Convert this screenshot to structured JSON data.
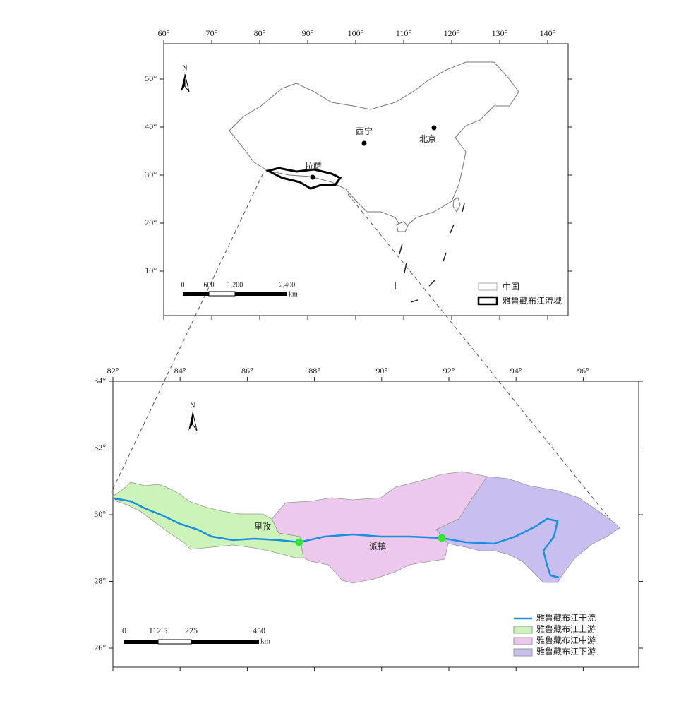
{
  "top_map": {
    "lon_ticks": [
      "60°",
      "70°",
      "80°",
      "90°",
      "100°",
      "110°",
      "120°",
      "130°",
      "140°"
    ],
    "lat_ticks": [
      "50°",
      "40°",
      "30°",
      "20°",
      "10°"
    ],
    "north": "N",
    "cities": [
      "西宁",
      "北京",
      "拉萨"
    ],
    "scale": [
      "0",
      "600",
      "1,200",
      "2,400",
      "km"
    ],
    "legend": [
      "中国",
      "雅鲁藏布江流域"
    ]
  },
  "bottom_map": {
    "lon_ticks": [
      "82°",
      "84°",
      "86°",
      "88°",
      "90°",
      "92°",
      "94°",
      "96°"
    ],
    "lat_ticks": [
      "34°",
      "32°",
      "30°",
      "28°",
      "26°"
    ],
    "north": "N",
    "places": [
      "里孜",
      "派镇"
    ],
    "scale": [
      "0",
      "112.5",
      "225",
      "450",
      "km"
    ],
    "legend": [
      "雅鲁藏布江干流",
      "雅鲁藏布江上游",
      "雅鲁藏布江中游",
      "雅鲁藏布江下游"
    ]
  }
}
